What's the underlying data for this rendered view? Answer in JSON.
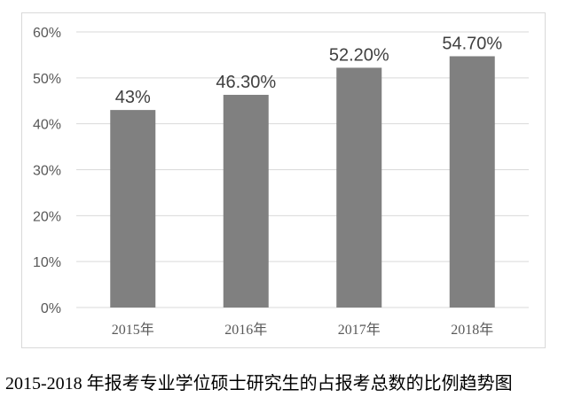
{
  "chart_data": {
    "type": "bar",
    "categories": [
      "2015年",
      "2016年",
      "2017年",
      "2018年"
    ],
    "values": [
      43,
      46.3,
      52.2,
      54.7
    ],
    "data_labels": [
      "43%",
      "46.30%",
      "52.20%",
      "54.70%"
    ],
    "y_ticks": [
      0,
      10,
      20,
      30,
      40,
      50,
      60
    ],
    "y_tick_labels": [
      "0%",
      "10%",
      "20%",
      "30%",
      "40%",
      "50%",
      "60%"
    ],
    "ylim": [
      0,
      60
    ],
    "grid": true,
    "bar_color": "#808080",
    "grid_color": "#d9d9d9"
  },
  "caption": "2015-2018 年报考专业学位硕士研究生的占报考总数的比例趋势图"
}
